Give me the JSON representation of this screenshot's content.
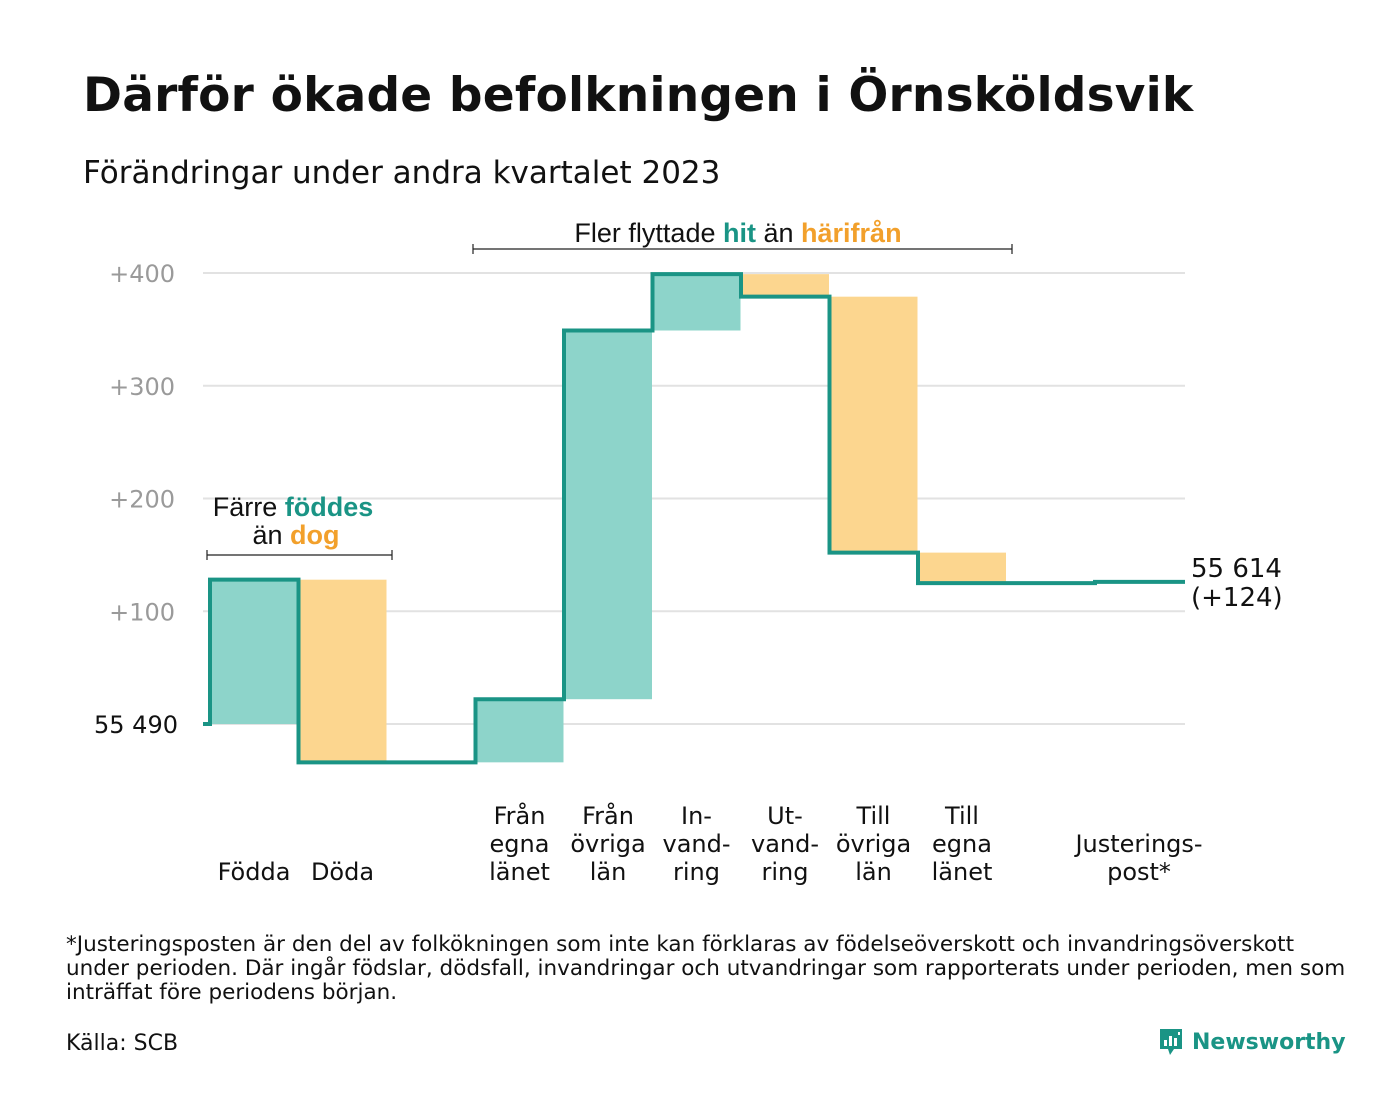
{
  "title": "Därför ökade befolkningen i Örnsköldsvik",
  "subtitle": "Förändringar under andra kvartalet 2023",
  "chart_data": {
    "type": "waterfall",
    "baseline_label": "55 490",
    "base": 0,
    "yticks": [
      {
        "value": 100,
        "label": "+100"
      },
      {
        "value": 200,
        "label": "+200"
      },
      {
        "value": 300,
        "label": "+300"
      },
      {
        "value": 400,
        "label": "+400"
      }
    ],
    "ylim": [
      -35,
      400
    ],
    "categories": [
      {
        "lines": [
          "Födda"
        ],
        "change": 128,
        "kind": "in"
      },
      {
        "lines": [
          "Döda"
        ],
        "change": -162,
        "kind": "out"
      },
      {
        "lines": [
          "Från",
          "egna",
          "länet"
        ],
        "change": 56,
        "kind": "in"
      },
      {
        "lines": [
          "Från",
          "övriga",
          "län"
        ],
        "change": 327,
        "kind": "in"
      },
      {
        "lines": [
          "In-",
          "vand-",
          "ring"
        ],
        "change": 50,
        "kind": "in"
      },
      {
        "lines": [
          "Ut-",
          "vand-",
          "ring"
        ],
        "change": -20,
        "kind": "out"
      },
      {
        "lines": [
          "Till",
          "övriga",
          "län"
        ],
        "change": -227,
        "kind": "out"
      },
      {
        "lines": [
          "Till",
          "egna",
          "länet"
        ],
        "change": -27,
        "kind": "out"
      },
      {
        "lines": [
          "Justerings-",
          "post*"
        ],
        "change": 1,
        "kind": "adjust"
      }
    ],
    "end_value": "55 614",
    "end_change": "(+124)",
    "annotations": {
      "births": {
        "pre": "Färre",
        "highlight1": "föddes",
        "mid": "än",
        "highlight2": "dog"
      },
      "migration": {
        "pre": "Fler flyttade",
        "highlight1": "hit",
        "mid": "än",
        "highlight2": "härifrån"
      }
    },
    "colors": {
      "in": "#8dd4ca",
      "out": "#fcd68f",
      "line": "#1a9485",
      "accent_in": "#1a9485",
      "accent_out": "#f2a02b",
      "grid": "#e2e2e2"
    }
  },
  "footnote": "*Justeringsposten är den del av folkökningen som inte kan förklaras av födelseöverskott och invandringsöverskott under perioden. Där ingår födslar, dödsfall, invandringar och utvandringar som rapporterats under perioden, men som inträffat före periodens början.",
  "source": "Källa: SCB",
  "brand": {
    "name": "Newsworthy",
    "icon": "newsworthy-logo-icon"
  }
}
